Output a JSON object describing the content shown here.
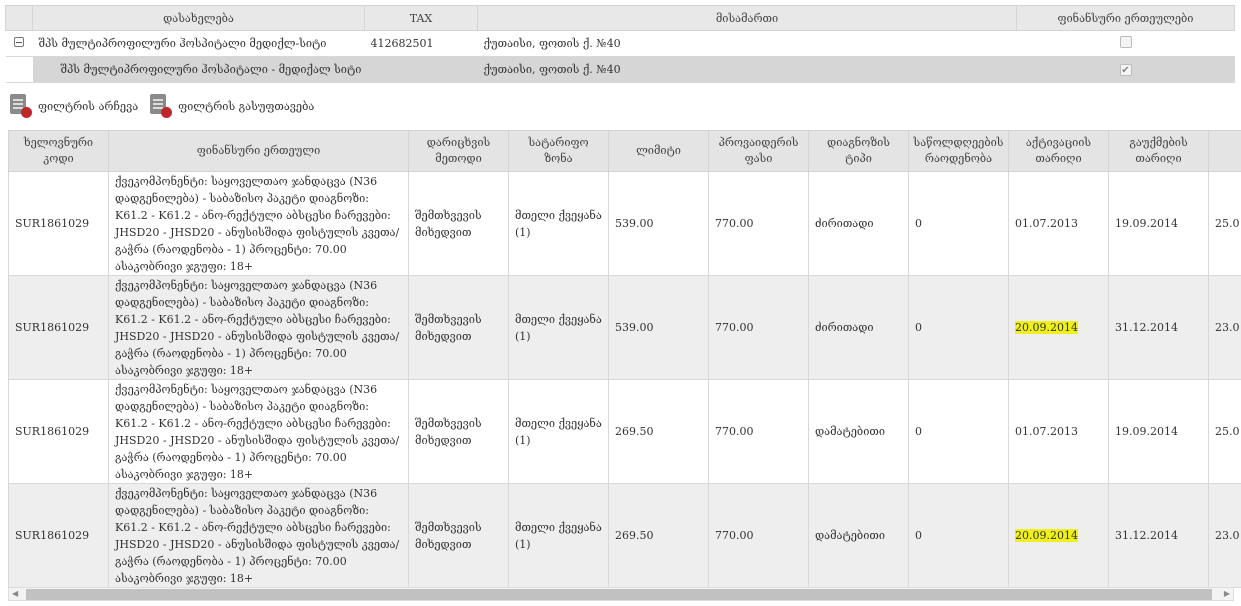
{
  "org_table": {
    "headers": [
      "დასახელება",
      "TAX",
      "მისამართი",
      "ფინანსური ერთეულები"
    ],
    "parent": {
      "name": "შპს მულტიპროფილური ჰოსპიტალი მედიქლ-სიტი",
      "tax": "412682501",
      "address": "ქუთაისი, ფოთის ქ. №40",
      "checked": false
    },
    "child": {
      "name": "შპს მულტიპროფილური ჰოსპიტალი - მედიქალ სიტი",
      "address": "ქუთაისი, ფოთის ქ. №40",
      "checked": true
    }
  },
  "toolbar": {
    "select_filter": "ფილტრის არჩევა",
    "clear_filter": "ფილტრის გასუფთავება"
  },
  "grid": {
    "headers": [
      "ხელოვნური კოდი",
      "ფინანსური ერთეული",
      "დარიცხვის მეთოდი",
      "სატარიფო ზონა",
      "ლიმიტი",
      "პროვაიდერის ფასი",
      "დიაგნოზის ტიპი",
      "საწოლდღეების რაოდენობა",
      "აქტივაციის თარიღი",
      "გაუქმების თარიღი"
    ],
    "highlight_color": "#f0f01a",
    "rows": [
      {
        "code": "SUR1861029",
        "unit": "ქვეკომპონენტი: საყოველთაო ჯანდაცვა (N36 დადგენილება) - საბაზისო პაკეტი დიაგნოზი: K61.2 - K61.2 - ანო-რექტული აბსცესი ჩარევები: JHSD20 - JHSD20 - ანუსისშიდა ფისტულის კვეთა/გაჭრა (რაოდენობა - 1) პროცენტი: 70.00 ასაკობრივი ჯგუფი: 18+",
        "method": "შემთხვევის მიხედვით",
        "zone": "მთელი ქვეყანა (1)",
        "limit": "539.00",
        "price": "770.00",
        "diag": "ძირითადი",
        "beds": "0",
        "activation": "01.07.2013",
        "cancel": "19.09.2014",
        "next": "25.0"
      },
      {
        "code": "SUR1861029",
        "unit": "ქვეკომპონენტი: საყოველთაო ჯანდაცვა (N36 დადგენილება) - საბაზისო პაკეტი დიაგნოზი: K61.2 - K61.2 - ანო-რექტული აბსცესი ჩარევები: JHSD20 - JHSD20 - ანუსისშიდა ფისტულის კვეთა/გაჭრა (რაოდენობა - 1) პროცენტი: 70.00 ასაკობრივი ჯგუფი: 18+",
        "method": "შემთხვევის მიხედვით",
        "zone": "მთელი ქვეყანა (1)",
        "limit": "539.00",
        "price": "770.00",
        "diag": "ძირითადი",
        "beds": "0",
        "activation": "20.09.2014",
        "cancel": "31.12.2014",
        "next": "23.0"
      },
      {
        "code": "SUR1861029",
        "unit": "ქვეკომპონენტი: საყოველთაო ჯანდაცვა (N36 დადგენილება) - საბაზისო პაკეტი დიაგნოზი: K61.2 - K61.2 - ანო-რექტული აბსცესი ჩარევები: JHSD20 - JHSD20 - ანუსისშიდა ფისტულის კვეთა/გაჭრა (რაოდენობა - 1) პროცენტი: 70.00 ასაკობრივი ჯგუფი: 18+",
        "method": "შემთხვევის მიხედვით",
        "zone": "მთელი ქვეყანა (1)",
        "limit": "269.50",
        "price": "770.00",
        "diag": "დამატებითი",
        "beds": "0",
        "activation": "01.07.2013",
        "cancel": "19.09.2014",
        "next": "25.0"
      },
      {
        "code": "SUR1861029",
        "unit": "ქვეკომპონენტი: საყოველთაო ჯანდაცვა (N36 დადგენილება) - საბაზისო პაკეტი დიაგნოზი: K61.2 - K61.2 - ანო-რექტული აბსცესი ჩარევები: JHSD20 - JHSD20 - ანუსისშიდა ფისტულის კვეთა/გაჭრა (რაოდენობა - 1) პროცენტი: 70.00 ასაკობრივი ჯგუფი: 18+",
        "method": "შემთხვევის მიხედვით",
        "zone": "მთელი ქვეყანა (1)",
        "limit": "269.50",
        "price": "770.00",
        "diag": "დამატებითი",
        "beds": "0",
        "activation": "20.09.2014",
        "cancel": "31.12.2014",
        "next": "23.0"
      }
    ]
  }
}
